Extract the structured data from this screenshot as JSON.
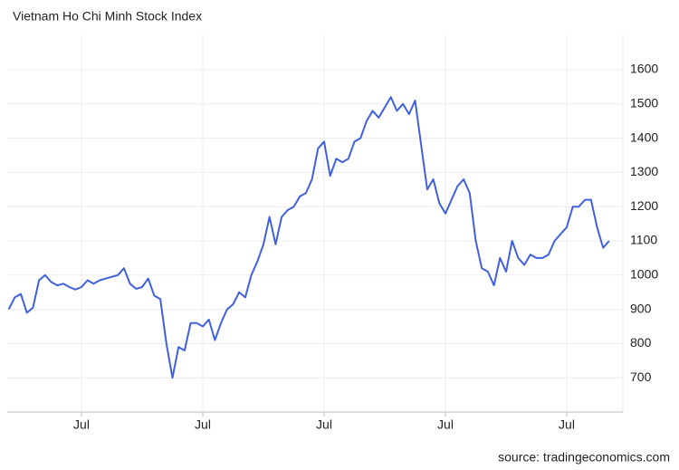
{
  "chart_data": {
    "type": "line",
    "title": "Vietnam Ho Chi Minh Stock Index",
    "source": "source: tradingeconomics.com",
    "categories": [
      null,
      null,
      null,
      null,
      null,
      null,
      null,
      null,
      null,
      null,
      null,
      null,
      "Jul",
      null,
      null,
      null,
      null,
      null,
      null,
      null,
      null,
      null,
      null,
      null,
      null,
      null,
      null,
      null,
      null,
      null,
      null,
      null,
      "Jul",
      null,
      null,
      null,
      null,
      null,
      null,
      null,
      null,
      null,
      null,
      null,
      null,
      null,
      null,
      null,
      null,
      null,
      null,
      null,
      "Jul",
      null,
      null,
      null,
      null,
      null,
      null,
      null,
      null,
      null,
      null,
      null,
      null,
      null,
      null,
      null,
      null,
      null,
      null,
      null,
      "Jul",
      null,
      null,
      null,
      null,
      null,
      null,
      null,
      null,
      null,
      null,
      null,
      null,
      null,
      null,
      null,
      null,
      null,
      null,
      null,
      "Jul",
      null,
      null,
      null,
      null,
      null,
      null,
      null
    ],
    "series": [
      {
        "color": "#4060e0",
        "values": [
          900,
          935,
          945,
          890,
          905,
          985,
          1000,
          980,
          970,
          975,
          965,
          958,
          965,
          985,
          975,
          985,
          990,
          995,
          1000,
          1020,
          975,
          960,
          965,
          990,
          940,
          930,
          800,
          700,
          790,
          780,
          860,
          860,
          850,
          870,
          810,
          860,
          900,
          915,
          950,
          935,
          1000,
          1040,
          1090,
          1170,
          1090,
          1170,
          1190,
          1200,
          1230,
          1240,
          1280,
          1370,
          1390,
          1290,
          1340,
          1330,
          1340,
          1390,
          1400,
          1450,
          1480,
          1460,
          1490,
          1520,
          1480,
          1500,
          1470,
          1510,
          1380,
          1250,
          1280,
          1210,
          1180,
          1220,
          1260,
          1280,
          1240,
          1100,
          1020,
          1010,
          970,
          1050,
          1010,
          1100,
          1050,
          1030,
          1060,
          1050,
          1050,
          1060,
          1100,
          1120,
          1140,
          1200,
          1200,
          1220,
          1220,
          1140,
          1080,
          1100
        ]
      }
    ],
    "ylim": [
      600,
      1700
    ],
    "yticks": [
      700,
      800,
      900,
      1000,
      1100,
      1200,
      1300,
      1400,
      1500,
      1600
    ],
    "grid": true
  }
}
